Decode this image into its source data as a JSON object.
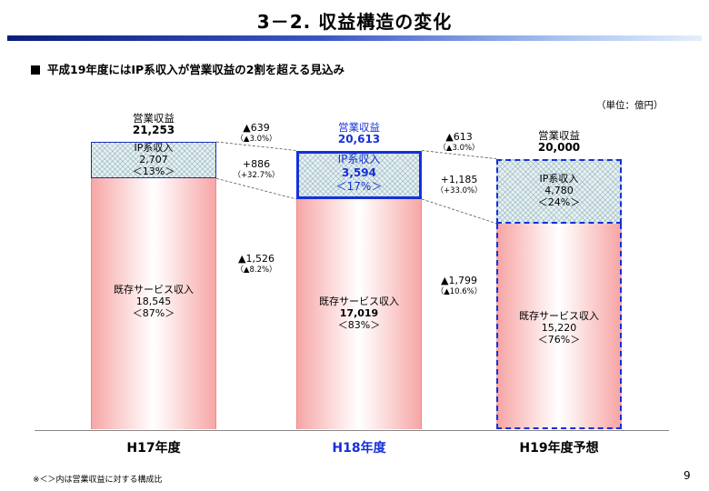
{
  "title": "3－2. 収益構造の変化",
  "subtitle": "平成19年度にはIP系収入が営業収益の2割を超える見込み",
  "unit": "（単位：億円）",
  "footnote": "※＜＞内は営業収益に対する構成比",
  "page_number": "9",
  "colors": {
    "accent": "#1530d8",
    "existing": "#f7a6a6",
    "ip": "#e8f1f3"
  },
  "chart_data": {
    "type": "bar",
    "stacked": true,
    "categories": [
      "H17年度",
      "H18年度",
      "H19年度予想"
    ],
    "series": [
      {
        "name": "既存サービス収入",
        "values": [
          18545,
          17019,
          15220
        ],
        "shares": [
          "＜87%＞",
          "＜83%＞",
          "＜76%＞"
        ]
      },
      {
        "name": "IP系収入",
        "values": [
          2707,
          3594,
          4780
        ],
        "shares": [
          "＜13%＞",
          "＜17%＞",
          "＜24%＞"
        ]
      }
    ],
    "total_label": "営業収益",
    "totals": [
      21253,
      20613,
      20000
    ],
    "ylim": [
      0,
      21253
    ],
    "changes": [
      {
        "total": "▲639",
        "total_pct": "（▲3.0%）",
        "ip": "+886",
        "ip_pct": "（+32.7%）",
        "existing": "▲1,526",
        "existing_pct": "（▲8.2%）"
      },
      {
        "total": "▲613",
        "total_pct": "（▲3.0%）",
        "ip": "+1,185",
        "ip_pct": "（+33.0%）",
        "existing": "▲1,799",
        "existing_pct": "（▲10.6%）"
      }
    ]
  }
}
